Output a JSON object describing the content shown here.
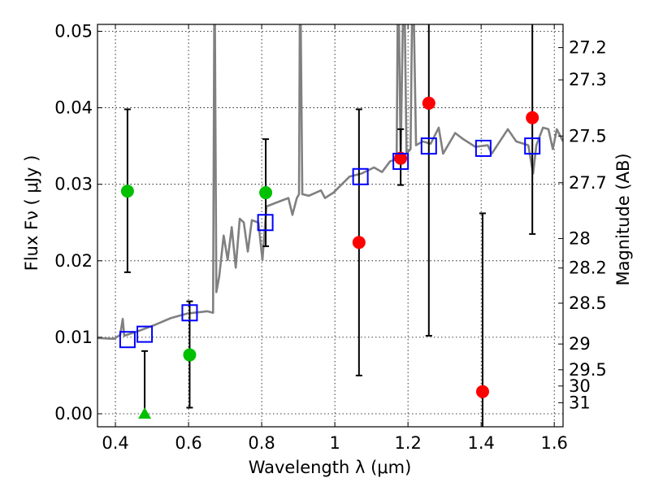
{
  "chart_data": {
    "type": "scatter",
    "title": "",
    "xlabel": "Wavelength  λ (μm)",
    "ylabel": "Flux  Fν  ( μJy )",
    "ylabel_right": "Magnitude (AB)",
    "xlim": [
      0.351,
      1.624
    ],
    "ylim": [
      -0.0017,
      0.0509
    ],
    "grid": true,
    "x_ticks": [
      0.4,
      0.6,
      0.8,
      1.0,
      1.2,
      1.4,
      1.6
    ],
    "x_tick_labels": [
      "0.4",
      "0.6",
      "0.8",
      "1",
      "1.2",
      "1.4",
      "1.6"
    ],
    "y_ticks": [
      0.0,
      0.01,
      0.02,
      0.03,
      0.04,
      0.05
    ],
    "y_tick_labels": [
      "0.00",
      "0.01",
      "0.02",
      "0.03",
      "0.04",
      "0.05"
    ],
    "right_ticks": [
      27.2,
      27.3,
      27.5,
      27.7,
      28,
      28.2,
      28.5,
      29,
      29.5,
      30,
      31
    ],
    "right_tick_labels": [
      "27.2",
      "27.3",
      "27.5",
      "27.7",
      "28",
      "28.2",
      "28.5",
      "29",
      "29.5",
      "30",
      "31"
    ],
    "colors": {
      "spectrum": "#808080",
      "green": "#00c000",
      "red": "#ff0000",
      "model": "#0000ff",
      "error": "#000000"
    },
    "spectrum": [
      [
        0.351,
        0.0099
      ],
      [
        0.396,
        0.0098
      ],
      [
        0.413,
        0.0103
      ],
      [
        0.42,
        0.0124
      ],
      [
        0.424,
        0.0102
      ],
      [
        0.462,
        0.0108
      ],
      [
        0.507,
        0.0116
      ],
      [
        0.551,
        0.0125
      ],
      [
        0.596,
        0.0131
      ],
      [
        0.651,
        0.0134
      ],
      [
        0.667,
        0.0132
      ],
      [
        0.671,
        0.06
      ],
      [
        0.676,
        0.0159
      ],
      [
        0.684,
        0.018
      ],
      [
        0.696,
        0.0233
      ],
      [
        0.707,
        0.0201
      ],
      [
        0.718,
        0.0244
      ],
      [
        0.729,
        0.0191
      ],
      [
        0.74,
        0.0255
      ],
      [
        0.751,
        0.025
      ],
      [
        0.762,
        0.0212
      ],
      [
        0.773,
        0.0253
      ],
      [
        0.791,
        0.025
      ],
      [
        0.802,
        0.0201
      ],
      [
        0.813,
        0.0271
      ],
      [
        0.84,
        0.0276
      ],
      [
        0.873,
        0.0282
      ],
      [
        0.884,
        0.026
      ],
      [
        0.896,
        0.0282
      ],
      [
        0.902,
        0.0287
      ],
      [
        0.905,
        0.06
      ],
      [
        0.911,
        0.0287
      ],
      [
        0.929,
        0.0285
      ],
      [
        0.962,
        0.0292
      ],
      [
        0.973,
        0.0282
      ],
      [
        0.996,
        0.0289
      ],
      [
        1.04,
        0.031
      ],
      [
        1.073,
        0.0314
      ],
      [
        1.107,
        0.0322
      ],
      [
        1.129,
        0.0316
      ],
      [
        1.151,
        0.033
      ],
      [
        1.169,
        0.0333
      ],
      [
        1.173,
        0.06
      ],
      [
        1.18,
        0.0335
      ],
      [
        1.189,
        0.06
      ],
      [
        1.196,
        0.034
      ],
      [
        1.207,
        0.0346
      ],
      [
        1.213,
        0.06
      ],
      [
        1.222,
        0.0351
      ],
      [
        1.24,
        0.0356
      ],
      [
        1.262,
        0.0353
      ],
      [
        1.284,
        0.0374
      ],
      [
        1.296,
        0.034
      ],
      [
        1.329,
        0.0367
      ],
      [
        1.351,
        0.0359
      ],
      [
        1.384,
        0.0349
      ],
      [
        1.418,
        0.0351
      ],
      [
        1.429,
        0.034
      ],
      [
        1.473,
        0.0372
      ],
      [
        1.496,
        0.0356
      ],
      [
        1.529,
        0.0351
      ],
      [
        1.542,
        0.0314
      ],
      [
        1.551,
        0.0351
      ],
      [
        1.569,
        0.0374
      ],
      [
        1.584,
        0.0372
      ],
      [
        1.596,
        0.0346
      ],
      [
        1.607,
        0.0372
      ],
      [
        1.624,
        0.0356
      ]
    ],
    "series": [
      {
        "name": "green",
        "marker": "circle",
        "points": [
          {
            "x": 0.433,
            "y": 0.0291,
            "lo": 0.0185,
            "hi": 0.0398
          },
          {
            "x": 0.603,
            "y": 0.0077,
            "lo": 0.0008,
            "hi": 0.0147
          },
          {
            "x": 0.811,
            "y": 0.0289,
            "lo": 0.0219,
            "hi": 0.0359
          }
        ]
      },
      {
        "name": "green-upper-limit",
        "marker": "triangle",
        "points": [
          {
            "x": 0.48,
            "y": 0.0,
            "lo": 0.0,
            "hi": 0.0082
          }
        ]
      },
      {
        "name": "red",
        "marker": "circle",
        "points": [
          {
            "x": 1.066,
            "y": 0.0224,
            "lo": 0.005,
            "hi": 0.0398
          },
          {
            "x": 1.18,
            "y": 0.0334,
            "lo": 0.0299,
            "hi": 0.0372
          },
          {
            "x": 1.257,
            "y": 0.0406,
            "lo": 0.0102,
            "hi": 0.06
          },
          {
            "x": 1.404,
            "y": 0.0029,
            "lo": -0.01,
            "hi": 0.0262
          },
          {
            "x": 1.54,
            "y": 0.0387,
            "lo": 0.0235,
            "hi": 0.06
          }
        ]
      },
      {
        "name": "model-photometry",
        "marker": "square",
        "points": [
          {
            "x": 0.433,
            "y": 0.0097
          },
          {
            "x": 0.48,
            "y": 0.0104
          },
          {
            "x": 0.603,
            "y": 0.0132
          },
          {
            "x": 0.81,
            "y": 0.025
          },
          {
            "x": 1.07,
            "y": 0.031
          },
          {
            "x": 1.18,
            "y": 0.033
          },
          {
            "x": 1.257,
            "y": 0.035
          },
          {
            "x": 1.406,
            "y": 0.0347
          },
          {
            "x": 1.54,
            "y": 0.035
          }
        ]
      }
    ]
  }
}
